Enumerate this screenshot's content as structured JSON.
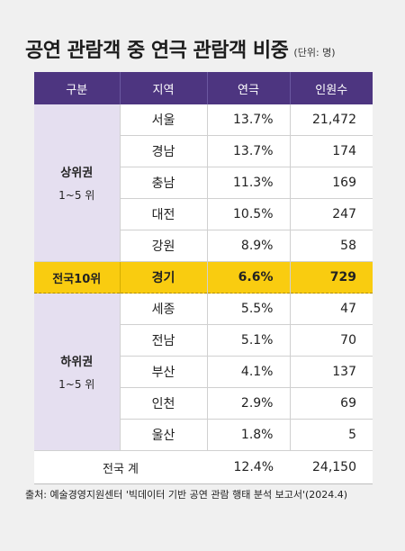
{
  "title": "공연 관람객 중 연극 관람객 비중",
  "unit": "(단위: 명)",
  "headers": [
    "구분",
    "지역",
    "연극",
    "인원수"
  ],
  "groups": {
    "upper": {
      "title": "상위권",
      "sub": "1~5 위"
    },
    "lower": {
      "title": "하위권",
      "sub": "1~5 위"
    }
  },
  "upper_rows": [
    {
      "region": "서울",
      "share": "13.7%",
      "count": "21,472"
    },
    {
      "region": "경남",
      "share": "13.7%",
      "count": "174"
    },
    {
      "region": "충남",
      "share": "11.3%",
      "count": "169"
    },
    {
      "region": "대전",
      "share": "10.5%",
      "count": "247"
    },
    {
      "region": "강원",
      "share": "8.9%",
      "count": "58"
    }
  ],
  "highlight": {
    "rank": "전국10위",
    "region": "경기",
    "share": "6.6%",
    "count": "729"
  },
  "lower_rows": [
    {
      "region": "세종",
      "share": "5.5%",
      "count": "47"
    },
    {
      "region": "전남",
      "share": "5.1%",
      "count": "70"
    },
    {
      "region": "부산",
      "share": "4.1%",
      "count": "137"
    },
    {
      "region": "인천",
      "share": "2.9%",
      "count": "69"
    },
    {
      "region": "울산",
      "share": "1.8%",
      "count": "5"
    }
  ],
  "total": {
    "label": "전국 계",
    "share": "12.4%",
    "count": "24,150"
  },
  "source": "출처: 예술경영지원센터 '빅데이터 기반 공연 관람 행태 분석 보고서'(2024.4)",
  "colors": {
    "header": "#4d3580",
    "group_bg": "#e5dff0",
    "highlight": "#f9cc10",
    "background": "#f0f0f0"
  }
}
